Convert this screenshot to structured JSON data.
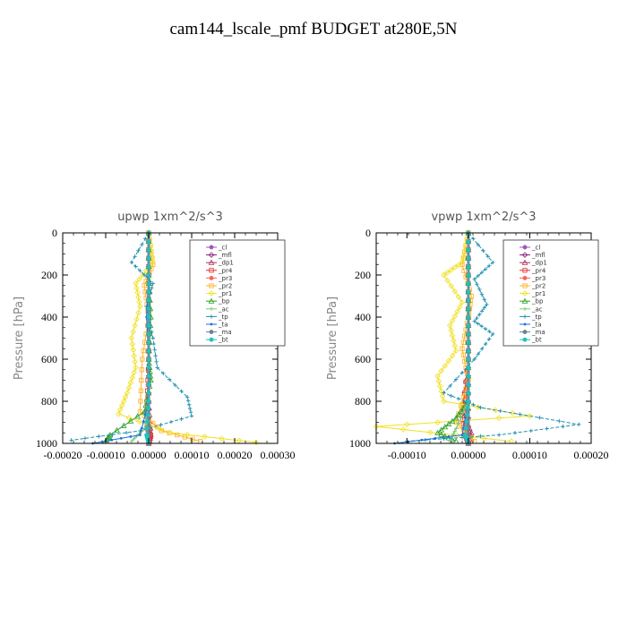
{
  "title": "cam144_lscale_pmf  BUDGET at280E,5N",
  "chart_data": [
    {
      "type": "line",
      "title": "upwp   1xm^2/s^3",
      "ylabel": "Pressure [hPa]",
      "xlim": [
        -0.0002,
        0.0003
      ],
      "ylim": [
        1000,
        0
      ],
      "xticks": [
        "-0.00020",
        "-0.00010",
        "0.00000",
        "0.00010",
        "0.00020",
        "0.00030"
      ],
      "yticks": [
        "0",
        "200",
        "400",
        "600",
        "800",
        "1000"
      ],
      "legend": [
        "_cl",
        "_mfl",
        "_dp1",
        "_pr4",
        "_pr3",
        "_pr2",
        "_pr1",
        "_bp",
        "_ac",
        "_tp",
        "_ta",
        "_ma",
        "_bt"
      ],
      "series": [
        {
          "name": "_cl",
          "color": "#9b59b6",
          "x": [
            0,
            0,
            0,
            0,
            0,
            0
          ],
          "y": [
            0,
            200,
            400,
            600,
            800,
            1000
          ]
        },
        {
          "name": "_mfl",
          "color": "#8b1a7a",
          "x": [
            0,
            0,
            0,
            0,
            0,
            0
          ],
          "y": [
            0,
            200,
            400,
            600,
            800,
            1000
          ]
        },
        {
          "name": "_dp1",
          "color": "#b03060",
          "x": [
            0,
            0,
            0,
            0,
            0,
            5e-06,
            0
          ],
          "y": [
            0,
            200,
            400,
            600,
            800,
            960,
            1000
          ]
        },
        {
          "name": "_pr4",
          "color": "#e03030",
          "x": [
            0,
            0,
            0,
            0,
            -5e-06,
            5e-06,
            0
          ],
          "y": [
            0,
            200,
            400,
            600,
            850,
            960,
            1000
          ]
        },
        {
          "name": "_pr3",
          "color": "#ff6060",
          "x": [
            0,
            0,
            0,
            0,
            -5e-06,
            0
          ],
          "y": [
            0,
            200,
            400,
            600,
            900,
            1000
          ]
        },
        {
          "name": "_pr2",
          "color": "#ffb020",
          "x": [
            0,
            1e-05,
            -1e-05,
            0,
            -1.5e-05,
            -2e-05,
            3e-05,
            0.00012
          ],
          "y": [
            0,
            150,
            250,
            400,
            600,
            850,
            940,
            990
          ]
        },
        {
          "name": "_pr1",
          "color": "#f0e020",
          "x": [
            0,
            1e-05,
            -3e-05,
            -2e-05,
            -4e-05,
            -3e-05,
            -5e-05,
            -7e-05,
            5e-05,
            0.00025
          ],
          "y": [
            0,
            140,
            240,
            350,
            500,
            640,
            760,
            860,
            950,
            995
          ]
        },
        {
          "name": "_bp",
          "color": "#2ca02c",
          "x": [
            0,
            0,
            5e-06,
            0,
            5e-06,
            -1e-05,
            -9e-05,
            -0.0001
          ],
          "y": [
            0,
            200,
            400,
            600,
            700,
            850,
            960,
            990
          ]
        },
        {
          "name": "_ac",
          "color": "#7ec87e",
          "x": [
            0,
            0,
            0,
            0,
            0,
            -1e-05,
            -4e-05
          ],
          "y": [
            0,
            200,
            400,
            600,
            800,
            930,
            990
          ]
        },
        {
          "name": "_tp",
          "color": "#2090b0",
          "x": [
            0,
            -4e-05,
            1e-05,
            -5e-06,
            1e-05,
            2e-05,
            9e-05,
            0.0001,
            -2e-05,
            -0.00018
          ],
          "y": [
            0,
            140,
            240,
            350,
            500,
            640,
            780,
            870,
            940,
            985
          ]
        },
        {
          "name": "_ta",
          "color": "#1a6fd8",
          "x": [
            0,
            0,
            -5e-06,
            0,
            0,
            -2e-05,
            -0.00013
          ],
          "y": [
            0,
            200,
            400,
            600,
            800,
            960,
            1000
          ]
        },
        {
          "name": "_ma",
          "color": "#708090",
          "x": [
            0,
            0,
            0,
            0,
            0,
            0
          ],
          "y": [
            0,
            200,
            400,
            600,
            800,
            1000
          ]
        },
        {
          "name": "_bt",
          "color": "#20c0c0",
          "x": [
            0,
            0,
            0,
            0,
            0,
            -5e-06,
            0
          ],
          "y": [
            0,
            200,
            400,
            600,
            800,
            960,
            1000
          ]
        }
      ]
    },
    {
      "type": "line",
      "title": "vpwp   1xm^2/s^3",
      "ylabel": "Pressure [hPa]",
      "xlim": [
        -0.00015,
        0.0002
      ],
      "ylim": [
        1000,
        0
      ],
      "xticks": [
        "-0.00010",
        "0.00000",
        "0.00010",
        "0.00020"
      ],
      "yticks": [
        "0",
        "200",
        "400",
        "600",
        "800",
        "1000"
      ],
      "legend": [
        "_cl",
        "_mfl",
        "_dp1",
        "_pr4",
        "_pr3",
        "_pr2",
        "_pr1",
        "_bp",
        "_ac",
        "_tp",
        "_ta",
        "_ma",
        "_bt"
      ],
      "series": [
        {
          "name": "_cl",
          "color": "#9b59b6",
          "x": [
            0,
            0,
            0,
            0,
            0,
            0
          ],
          "y": [
            0,
            200,
            400,
            600,
            800,
            1000
          ]
        },
        {
          "name": "_mfl",
          "color": "#8b1a7a",
          "x": [
            0,
            0,
            0,
            0,
            0,
            0
          ],
          "y": [
            0,
            200,
            400,
            600,
            800,
            1000
          ]
        },
        {
          "name": "_dp1",
          "color": "#b03060",
          "x": [
            0,
            0,
            0,
            0,
            -1e-05,
            5e-06,
            0
          ],
          "y": [
            0,
            200,
            400,
            600,
            850,
            950,
            1000
          ]
        },
        {
          "name": "_pr4",
          "color": "#e03030",
          "x": [
            0,
            0,
            0,
            0,
            -1e-05,
            -5e-06,
            0
          ],
          "y": [
            0,
            200,
            400,
            600,
            870,
            960,
            1000
          ]
        },
        {
          "name": "_pr3",
          "color": "#ff6060",
          "x": [
            0,
            0,
            0,
            0,
            -5e-06,
            0
          ],
          "y": [
            0,
            200,
            400,
            600,
            900,
            1000
          ]
        },
        {
          "name": "_pr2",
          "color": "#ffb020",
          "x": [
            0,
            -1e-05,
            5e-06,
            0,
            -1e-05,
            0,
            -2e-05,
            1e-05
          ],
          "y": [
            0,
            150,
            300,
            400,
            550,
            700,
            900,
            990
          ]
        },
        {
          "name": "_pr1",
          "color": "#f0e020",
          "x": [
            0,
            -1e-05,
            -4e-05,
            -1e-05,
            -3e-05,
            -2e-05,
            -5e-05,
            -4e-05,
            0.0001,
            -0.00015,
            7e-05
          ],
          "y": [
            0,
            140,
            200,
            330,
            440,
            560,
            680,
            800,
            870,
            920,
            990
          ]
        },
        {
          "name": "_bp",
          "color": "#2ca02c",
          "x": [
            0,
            0,
            0,
            0,
            0,
            -2e-05,
            -5e-05,
            -2e-05
          ],
          "y": [
            0,
            200,
            400,
            600,
            800,
            880,
            950,
            990
          ]
        },
        {
          "name": "_ac",
          "color": "#7ec87e",
          "x": [
            0,
            0,
            0,
            0,
            0,
            -2e-05,
            -3e-05
          ],
          "y": [
            0,
            200,
            400,
            600,
            800,
            930,
            990
          ]
        },
        {
          "name": "_tp",
          "color": "#2090b0",
          "x": [
            0,
            4e-05,
            1e-05,
            3e-05,
            1e-05,
            4e-05,
            1e-05,
            -4e-05,
            2e-05,
            0.00018,
            5e-05,
            -0.0001
          ],
          "y": [
            0,
            140,
            220,
            340,
            420,
            480,
            600,
            760,
            830,
            910,
            960,
            990
          ]
        },
        {
          "name": "_ta",
          "color": "#1a6fd8",
          "x": [
            0,
            0,
            0,
            0,
            0,
            -1e-05,
            -0.00012
          ],
          "y": [
            0,
            200,
            400,
            600,
            800,
            960,
            1000
          ]
        },
        {
          "name": "_ma",
          "color": "#708090",
          "x": [
            0,
            0,
            0,
            0,
            0,
            0
          ],
          "y": [
            0,
            200,
            400,
            600,
            800,
            1000
          ]
        },
        {
          "name": "_bt",
          "color": "#20c0c0",
          "x": [
            0,
            0,
            0,
            0,
            0,
            -5e-06,
            0
          ],
          "y": [
            0,
            200,
            400,
            600,
            800,
            960,
            1000
          ]
        }
      ]
    }
  ]
}
